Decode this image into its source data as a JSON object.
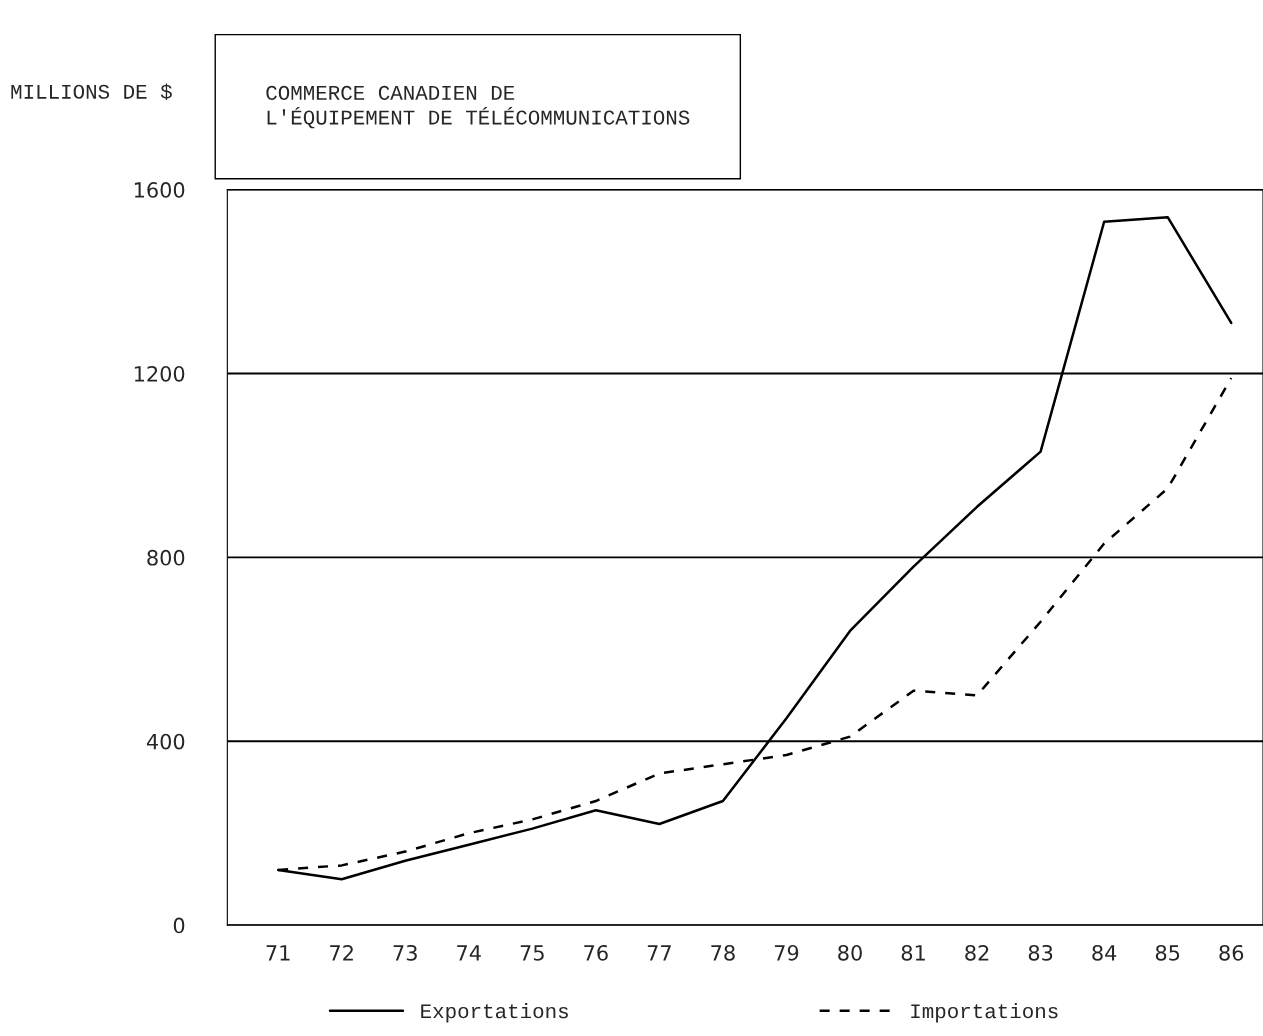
{
  "chart_data": {
    "type": "line",
    "title": "COMMERCE CANADIEN DE\nL'ÉQUIPEMENT DE TÉLÉCOMMUNICATIONS",
    "ylabel": "MILLIONS DE $",
    "categories": [
      "71",
      "72",
      "73",
      "74",
      "75",
      "76",
      "77",
      "78",
      "79",
      "80",
      "81",
      "82",
      "83",
      "84",
      "85",
      "86"
    ],
    "series": [
      {
        "name": "Exportations",
        "color": "#000000",
        "line_style": "solid",
        "values": [
          120,
          100,
          140,
          175,
          210,
          250,
          220,
          270,
          450,
          640,
          780,
          910,
          1030,
          1530,
          1540,
          1310
        ]
      },
      {
        "name": "Importations",
        "color": "#000000",
        "line_style": "dashed",
        "values": [
          120,
          130,
          160,
          200,
          230,
          270,
          330,
          350,
          370,
          410,
          510,
          500,
          660,
          830,
          950,
          1190
        ]
      }
    ],
    "ylim": [
      0,
      1600
    ],
    "yticks": [
      0,
      400,
      800,
      1200,
      1600
    ],
    "grid": "y",
    "legend": "bottom",
    "marker": "none"
  }
}
